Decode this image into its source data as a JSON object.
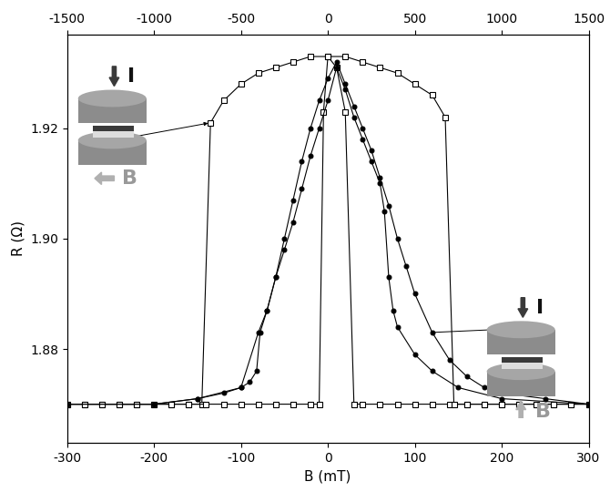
{
  "chart_data": {
    "type": "line",
    "x_label": "B (mT)",
    "y_label": "R (Ω)",
    "xlim": [
      -300,
      300
    ],
    "xticks": [
      -300,
      -200,
      -100,
      0,
      100,
      200,
      300
    ],
    "x2lim": [
      -1500,
      1500
    ],
    "x2ticks": [
      -1500,
      -1000,
      -500,
      0,
      500,
      1000,
      1500
    ],
    "ylim": [
      1.863,
      1.937
    ],
    "yticks": [
      {
        "value": 1.88,
        "label": "1.88"
      },
      {
        "value": 1.9,
        "label": "1.90"
      },
      {
        "value": 1.92,
        "label": "1.92"
      }
    ],
    "grid": false,
    "annotations": [
      {
        "text": "I"
      },
      {
        "text": "B"
      },
      {
        "text": "I"
      },
      {
        "text": "B"
      }
    ],
    "series": [
      {
        "color": "#000000",
        "marker": "open_square",
        "line_style": "solid",
        "x": [
          300,
          280,
          260,
          240,
          220,
          200,
          180,
          160,
          140,
          120,
          100,
          80,
          60,
          40,
          30,
          20,
          10,
          0,
          -20,
          -40,
          -60,
          -80,
          -100,
          -120,
          -135,
          -145,
          -160,
          -180,
          -200,
          -220,
          -240,
          -260,
          -280,
          -300
        ],
        "values": [
          1.87,
          1.87,
          1.87,
          1.87,
          1.87,
          1.87,
          1.87,
          1.87,
          1.87,
          1.87,
          1.87,
          1.87,
          1.87,
          1.87,
          1.87,
          1.923,
          1.931,
          1.933,
          1.933,
          1.932,
          1.931,
          1.93,
          1.928,
          1.925,
          1.921,
          1.87,
          1.87,
          1.87,
          1.87,
          1.87,
          1.87,
          1.87,
          1.87,
          1.87
        ]
      },
      {
        "color": "#000000",
        "marker": "open_square",
        "line_style": "solid",
        "x": [
          -300,
          -280,
          -260,
          -240,
          -220,
          -200,
          -180,
          -160,
          -140,
          -120,
          -100,
          -80,
          -60,
          -40,
          -20,
          -10,
          -5,
          0,
          20,
          40,
          60,
          80,
          100,
          120,
          135,
          145,
          160,
          180,
          200,
          220,
          240,
          260,
          280,
          300
        ],
        "values": [
          1.87,
          1.87,
          1.87,
          1.87,
          1.87,
          1.87,
          1.87,
          1.87,
          1.87,
          1.87,
          1.87,
          1.87,
          1.87,
          1.87,
          1.87,
          1.87,
          1.923,
          1.933,
          1.933,
          1.932,
          1.931,
          1.93,
          1.928,
          1.926,
          1.922,
          1.87,
          1.87,
          1.87,
          1.87,
          1.87,
          1.87,
          1.87,
          1.87,
          1.87
        ]
      },
      {
        "color": "#000000",
        "marker": "circle",
        "line_style": "solid",
        "x": [
          300,
          250,
          200,
          180,
          160,
          140,
          120,
          100,
          90,
          80,
          70,
          60,
          50,
          40,
          30,
          20,
          10,
          0,
          -10,
          -20,
          -30,
          -40,
          -50,
          -60,
          -70,
          -78,
          -82,
          -90,
          -100,
          -120,
          -150,
          -200,
          -300
        ],
        "values": [
          1.87,
          1.871,
          1.872,
          1.873,
          1.875,
          1.878,
          1.883,
          1.89,
          1.895,
          1.9,
          1.906,
          1.911,
          1.916,
          1.92,
          1.924,
          1.928,
          1.932,
          1.929,
          1.925,
          1.92,
          1.914,
          1.907,
          1.9,
          1.893,
          1.887,
          1.883,
          1.876,
          1.874,
          1.873,
          1.872,
          1.871,
          1.87,
          1.87
        ]
      },
      {
        "color": "#000000",
        "marker": "circle",
        "line_style": "solid",
        "x": [
          -300,
          -200,
          -150,
          -100,
          -80,
          -70,
          -60,
          -50,
          -40,
          -30,
          -20,
          -10,
          0,
          10,
          20,
          30,
          40,
          50,
          60,
          65,
          70,
          75,
          80,
          100,
          120,
          150,
          200,
          300
        ],
        "values": [
          1.87,
          1.87,
          1.871,
          1.873,
          1.883,
          1.887,
          1.893,
          1.898,
          1.903,
          1.909,
          1.915,
          1.92,
          1.925,
          1.931,
          1.927,
          1.922,
          1.918,
          1.914,
          1.91,
          1.905,
          1.893,
          1.887,
          1.884,
          1.879,
          1.876,
          1.873,
          1.871,
          1.87
        ]
      }
    ]
  }
}
